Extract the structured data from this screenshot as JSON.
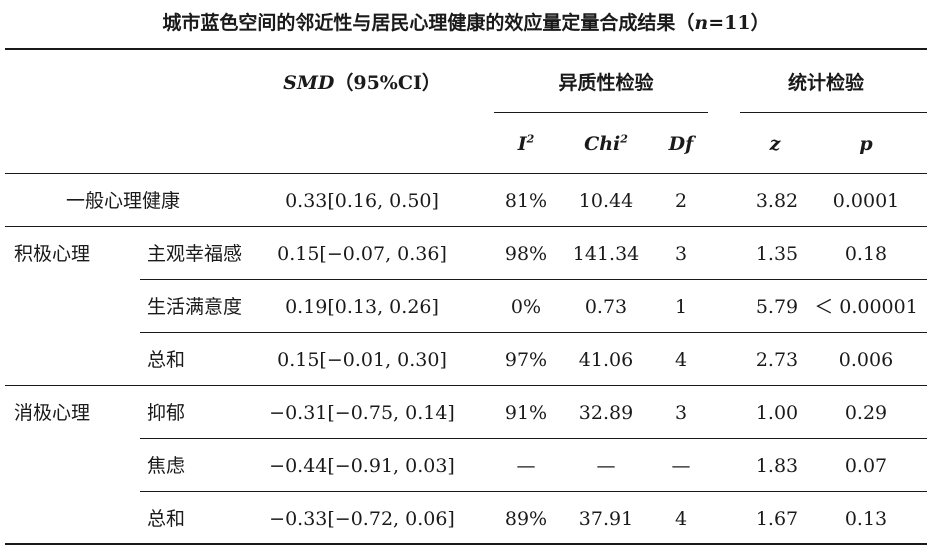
{
  "title": {
    "text": "城市蓝色空间的邻近性与居民心理健康的效应量定量合成结果（",
    "n_var": "n",
    "n_eq": "=11）"
  },
  "headers": {
    "smd_var": "SMD",
    "smd_rest": "（95%CI）",
    "heterogeneity": "异质性检验",
    "stat_test": "统计检验",
    "i2": "I",
    "i2_sup": "2",
    "chi2": "Chi",
    "chi2_sup": "2",
    "df": "Df",
    "z": "z",
    "p": "p"
  },
  "rows": [
    {
      "group": "一般心理健康",
      "sub": "",
      "smd": "0.33[0.16, 0.50]",
      "i2": "81%",
      "chi2": "10.44",
      "df": "2",
      "z": "3.82",
      "p": "0.0001"
    },
    {
      "group": "积极心理",
      "sub": "主观幸福感",
      "smd": "0.15[−0.07, 0.36]",
      "i2": "98%",
      "chi2": "141.34",
      "df": "3",
      "z": "1.35",
      "p": "0.18"
    },
    {
      "group": "",
      "sub": "生活满意度",
      "smd": "0.19[0.13, 0.26]",
      "i2": "0%",
      "chi2": "0.73",
      "df": "1",
      "z": "5.79",
      "p": "＜ 0.00001"
    },
    {
      "group": "",
      "sub": "总和",
      "smd": "0.15[−0.01, 0.30]",
      "i2": "97%",
      "chi2": "41.06",
      "df": "4",
      "z": "2.73",
      "p": "0.006"
    },
    {
      "group": "消极心理",
      "sub": "抑郁",
      "smd": "−0.31[−0.75, 0.14]",
      "i2": "91%",
      "chi2": "32.89",
      "df": "3",
      "z": "1.00",
      "p": "0.29"
    },
    {
      "group": "",
      "sub": "焦虑",
      "smd": "−0.44[−0.91,  0.03]",
      "i2": "—",
      "chi2": "—",
      "df": "—",
      "z": "1.83",
      "p": "0.07"
    },
    {
      "group": "",
      "sub": "总和",
      "smd": "−0.33[−0.72, 0.06]",
      "i2": "89%",
      "chi2": "37.91",
      "df": "4",
      "z": "1.67",
      "p": "0.13"
    }
  ]
}
